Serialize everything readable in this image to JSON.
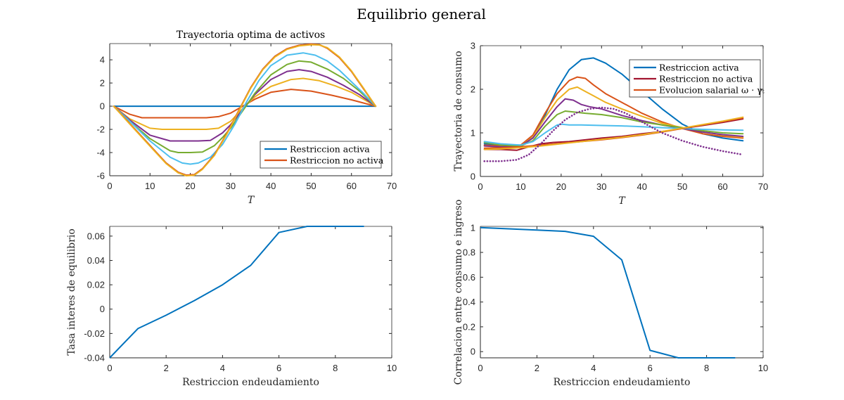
{
  "figure": {
    "title": "Equilibrio general"
  },
  "chart_data": [
    {
      "id": "tl",
      "type": "line",
      "title": "Trayectoria optima de activos",
      "xlabel": "T",
      "ylabel": "",
      "xlim": [
        0,
        70
      ],
      "ylim": [
        -6,
        5.4
      ],
      "xticks": [
        0,
        10,
        20,
        30,
        40,
        50,
        60,
        70
      ],
      "yticks": [
        -6,
        -4,
        -2,
        0,
        2,
        4
      ],
      "legend": {
        "placement": "lower-right",
        "entries": [
          {
            "label": "Restriccion activa",
            "color": "#0072BD"
          },
          {
            "label": "Restriccion no activa",
            "color": "#D95319"
          }
        ]
      },
      "series": [
        {
          "color": "#0072BD",
          "kind": "solid",
          "x": [
            1,
            66
          ],
          "y": [
            0,
            0
          ]
        },
        {
          "color": "#D95319",
          "kind": "solid",
          "x": [
            1,
            5,
            8,
            12,
            15,
            18,
            21,
            24,
            27,
            30,
            33,
            36,
            40,
            45,
            50,
            55,
            60,
            66
          ],
          "y": [
            0,
            -0.7,
            -1,
            -1,
            -1,
            -1,
            -1,
            -1,
            -0.9,
            -0.6,
            0,
            0.6,
            1.2,
            1.45,
            1.3,
            0.95,
            0.55,
            0
          ]
        },
        {
          "color": "#EDB120",
          "kind": "solid",
          "x": [
            1,
            5,
            10,
            13,
            16,
            20,
            24,
            27,
            30,
            33,
            36,
            40,
            45,
            48,
            52,
            56,
            60,
            66
          ],
          "y": [
            0,
            -1.1,
            -1.9,
            -2,
            -2,
            -2,
            -2,
            -1.9,
            -1.3,
            -0.2,
            0.8,
            1.7,
            2.3,
            2.4,
            2.2,
            1.75,
            1.2,
            0
          ]
        },
        {
          "color": "#7E2F8E",
          "kind": "solid",
          "x": [
            1,
            5,
            10,
            15,
            18,
            22,
            25,
            28,
            30,
            33,
            36,
            40,
            44,
            47,
            50,
            54,
            58,
            62,
            66
          ],
          "y": [
            0,
            -1.2,
            -2.5,
            -3,
            -3,
            -3,
            -2.95,
            -2.3,
            -1.6,
            -0.3,
            1,
            2.3,
            3,
            3.15,
            3,
            2.5,
            1.8,
            1,
            0
          ]
        },
        {
          "color": "#77AC30",
          "kind": "solid",
          "x": [
            1,
            5,
            10,
            15,
            17,
            20,
            23,
            26,
            28,
            30,
            32,
            34,
            36,
            40,
            44,
            47,
            50,
            54,
            58,
            62,
            66
          ],
          "y": [
            0,
            -1.3,
            -2.8,
            -3.85,
            -4,
            -4,
            -3.95,
            -3.4,
            -2.7,
            -1.9,
            -0.9,
            0.1,
            1.1,
            2.7,
            3.6,
            3.9,
            3.8,
            3.2,
            2.4,
            1.3,
            0
          ]
        },
        {
          "color": "#4DBEEE",
          "kind": "solid",
          "x": [
            1,
            5,
            10,
            15,
            18,
            20,
            22,
            25,
            28,
            31,
            34,
            37,
            40,
            44,
            48,
            51,
            54,
            57,
            60,
            63,
            66
          ],
          "y": [
            0,
            -1.3,
            -3,
            -4.4,
            -4.9,
            -5,
            -4.9,
            -4.4,
            -3.3,
            -1.6,
            0.4,
            2.2,
            3.5,
            4.4,
            4.6,
            4.4,
            3.9,
            3.1,
            2.1,
            1.1,
            0
          ]
        },
        {
          "color": "#A2142F",
          "kind": "solid",
          "x": [
            1,
            5,
            10,
            14,
            17,
            19,
            21,
            23,
            26,
            29,
            32,
            35,
            38,
            41,
            44,
            47,
            50,
            52,
            54,
            57,
            60,
            63,
            66
          ],
          "y": [
            0,
            -1.5,
            -3.4,
            -4.9,
            -5.7,
            -5.95,
            -5.9,
            -5.4,
            -4.2,
            -2.4,
            -0.4,
            1.6,
            3.2,
            4.3,
            4.95,
            5.25,
            5.35,
            5.3,
            5,
            4.2,
            3,
            1.5,
            0
          ]
        },
        {
          "color": "#D95319",
          "kind": "solid",
          "x": [
            1,
            5,
            10,
            14,
            17,
            19,
            21,
            23,
            26,
            29,
            32,
            35,
            38,
            41,
            44,
            47,
            50,
            52,
            54,
            57,
            60,
            63,
            66
          ],
          "y": [
            0,
            -1.5,
            -3.4,
            -4.9,
            -5.7,
            -5.95,
            -5.9,
            -5.4,
            -4.2,
            -2.4,
            -0.4,
            1.6,
            3.2,
            4.3,
            4.95,
            5.25,
            5.35,
            5.3,
            5,
            4.2,
            3,
            1.5,
            0
          ]
        },
        {
          "color": "#EDB120",
          "kind": "solid",
          "x": [
            1,
            5,
            10,
            14,
            17,
            19,
            21,
            23,
            26,
            29,
            32,
            35,
            38,
            41,
            44,
            47,
            50,
            52,
            54,
            57,
            60,
            63,
            66
          ],
          "y": [
            0,
            -1.55,
            -3.45,
            -4.95,
            -5.75,
            -6,
            -5.95,
            -5.45,
            -4.25,
            -2.45,
            -0.45,
            1.55,
            3.15,
            4.25,
            4.9,
            5.2,
            5.3,
            5.28,
            5.05,
            4.25,
            3.05,
            1.55,
            0
          ]
        }
      ]
    },
    {
      "id": "tr",
      "type": "line",
      "title": "",
      "xlabel": "T",
      "ylabel": "Trayectoria de consumo",
      "xlim": [
        0,
        70
      ],
      "ylim": [
        0,
        3
      ],
      "xticks": [
        0,
        10,
        20,
        30,
        40,
        50,
        60,
        70
      ],
      "yticks": [
        0,
        1,
        2,
        3
      ],
      "legend": {
        "placement": "top-right",
        "entries": [
          {
            "label": "Restriccion activa",
            "color": "#0072BD"
          },
          {
            "label": "Restriccion no activa",
            "color": "#A2142F"
          },
          {
            "label": "Evolucion salarial ω · γₜ",
            "color": "#D95319"
          }
        ]
      },
      "series": [
        {
          "color": "#0072BD",
          "kind": "solid",
          "x": [
            1,
            5,
            10,
            13,
            16,
            19,
            22,
            25,
            28,
            31,
            35,
            40,
            45,
            50,
            55,
            60,
            65
          ],
          "y": [
            0.75,
            0.72,
            0.72,
            0.9,
            1.4,
            2.0,
            2.45,
            2.68,
            2.72,
            2.6,
            2.35,
            1.95,
            1.55,
            1.2,
            0.98,
            0.88,
            0.82
          ]
        },
        {
          "color": "#D95319",
          "kind": "solid",
          "x": [
            1,
            5,
            10,
            13,
            16,
            19,
            22,
            24,
            26,
            28,
            31,
            35,
            40,
            45,
            50,
            55,
            60,
            65
          ],
          "y": [
            0.72,
            0.7,
            0.72,
            0.95,
            1.45,
            1.9,
            2.2,
            2.28,
            2.25,
            2.1,
            1.9,
            1.7,
            1.45,
            1.25,
            1.1,
            0.98,
            0.92,
            0.88
          ]
        },
        {
          "color": "#EDB120",
          "kind": "solid",
          "x": [
            1,
            5,
            10,
            13,
            16,
            19,
            22,
            24,
            26,
            28,
            31,
            35,
            40,
            45,
            50,
            55,
            60,
            65
          ],
          "y": [
            0.7,
            0.68,
            0.7,
            0.9,
            1.35,
            1.75,
            2.0,
            2.05,
            1.95,
            1.85,
            1.7,
            1.55,
            1.38,
            1.22,
            1.12,
            1.02,
            0.95,
            0.9
          ]
        },
        {
          "color": "#7E2F8E",
          "kind": "solid",
          "x": [
            1,
            5,
            10,
            13,
            16,
            19,
            21,
            23,
            25,
            27,
            30,
            35,
            40,
            45,
            50,
            55,
            60,
            65
          ],
          "y": [
            0.7,
            0.68,
            0.7,
            0.88,
            1.25,
            1.6,
            1.78,
            1.75,
            1.65,
            1.6,
            1.55,
            1.4,
            1.28,
            1.18,
            1.1,
            1.02,
            0.96,
            0.92
          ]
        },
        {
          "color": "#77AC30",
          "kind": "solid",
          "x": [
            1,
            5,
            10,
            13,
            16,
            19,
            21,
            23,
            26,
            30,
            35,
            40,
            45,
            50,
            55,
            60,
            65
          ],
          "y": [
            0.78,
            0.72,
            0.7,
            0.82,
            1.15,
            1.42,
            1.5,
            1.48,
            1.45,
            1.42,
            1.35,
            1.25,
            1.18,
            1.12,
            1.05,
            1.0,
            0.98
          ]
        },
        {
          "color": "#4DBEEE",
          "kind": "solid",
          "x": [
            1,
            5,
            10,
            13,
            16,
            19,
            20,
            22,
            25,
            30,
            35,
            40,
            45,
            50,
            55,
            60,
            65
          ],
          "y": [
            0.8,
            0.75,
            0.72,
            0.8,
            1.0,
            1.18,
            1.2,
            1.18,
            1.18,
            1.17,
            1.16,
            1.14,
            1.12,
            1.1,
            1.08,
            1.07,
            1.06
          ]
        },
        {
          "color": "#A2142F",
          "kind": "solid",
          "x": [
            1,
            5,
            9,
            12,
            15,
            18,
            22,
            26,
            30,
            35,
            40,
            45,
            50,
            55,
            60,
            65
          ],
          "y": [
            0.62,
            0.62,
            0.6,
            0.68,
            0.75,
            0.78,
            0.8,
            0.84,
            0.88,
            0.92,
            0.98,
            1.03,
            1.1,
            1.17,
            1.24,
            1.32
          ]
        },
        {
          "color": "#D95319",
          "kind": "solid",
          "x": [
            1,
            5,
            10,
            15,
            20,
            25,
            30,
            35,
            40,
            45,
            50,
            55,
            60,
            65
          ],
          "y": [
            0.65,
            0.66,
            0.68,
            0.72,
            0.76,
            0.8,
            0.84,
            0.89,
            0.95,
            1.02,
            1.1,
            1.18,
            1.26,
            1.34
          ]
        },
        {
          "color": "#EDB120",
          "kind": "solid",
          "x": [
            1,
            5,
            10,
            15,
            20,
            25,
            30,
            35,
            40,
            45,
            50,
            55,
            60,
            65
          ],
          "y": [
            0.62,
            0.63,
            0.66,
            0.7,
            0.75,
            0.8,
            0.85,
            0.9,
            0.96,
            1.03,
            1.11,
            1.19,
            1.27,
            1.36
          ]
        },
        {
          "color": "#7E2F8E",
          "kind": "dotted",
          "x": [
            1,
            5,
            9,
            12,
            15,
            18,
            21,
            24,
            27,
            30,
            33,
            36,
            40,
            45,
            50,
            55,
            60,
            65
          ],
          "y": [
            0.35,
            0.35,
            0.38,
            0.5,
            0.75,
            1.05,
            1.3,
            1.47,
            1.55,
            1.58,
            1.55,
            1.45,
            1.25,
            1.0,
            0.82,
            0.68,
            0.58,
            0.5
          ]
        }
      ]
    },
    {
      "id": "bl",
      "type": "line",
      "title": "",
      "xlabel": "Restriccion endeudamiento",
      "ylabel": "Tasa interes de equilibrio",
      "xlim": [
        0,
        10
      ],
      "ylim": [
        -0.04,
        0.068
      ],
      "xticks": [
        0,
        2,
        4,
        6,
        8,
        10
      ],
      "yticks": [
        -0.04,
        -0.02,
        0,
        0.02,
        0.04,
        0.06
      ],
      "series": [
        {
          "color": "#0072BD",
          "kind": "solid",
          "x": [
            0,
            1,
            2,
            3,
            4,
            5,
            6,
            7,
            8,
            9
          ],
          "y": [
            -0.04,
            -0.016,
            -0.005,
            0.007,
            0.02,
            0.036,
            0.063,
            0.068,
            0.068,
            0.068
          ]
        }
      ]
    },
    {
      "id": "br",
      "type": "line",
      "title": "",
      "xlabel": "Restriccion endeudamiento",
      "ylabel": "Correlacion entre consumo e ingreso",
      "xlim": [
        0,
        10
      ],
      "ylim": [
        -0.05,
        1.01
      ],
      "xticks": [
        0,
        2,
        4,
        6,
        8,
        10
      ],
      "yticks": [
        0,
        0.2,
        0.4,
        0.6,
        0.8,
        1
      ],
      "series": [
        {
          "color": "#0072BD",
          "kind": "solid",
          "x": [
            0,
            1,
            2,
            3,
            4,
            5,
            6,
            7,
            8,
            9
          ],
          "y": [
            1.0,
            0.99,
            0.98,
            0.97,
            0.93,
            0.74,
            0.01,
            -0.05,
            -0.05,
            -0.05
          ]
        }
      ]
    }
  ]
}
